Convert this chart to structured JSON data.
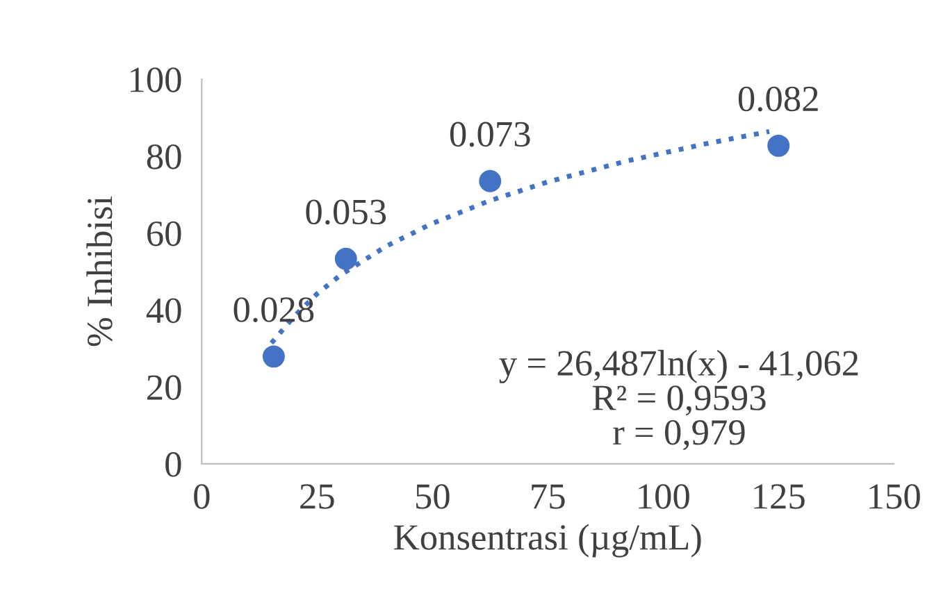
{
  "chart_data": {
    "type": "scatter",
    "xlabel": "Konsentrasi (µg/mL)",
    "ylabel": "% Inhibisi",
    "xlim": [
      0,
      150
    ],
    "xticks": [
      0,
      25,
      50,
      75,
      100,
      125,
      150
    ],
    "ylim": [
      0,
      100
    ],
    "yticks": [
      0,
      20,
      40,
      60,
      80,
      100
    ],
    "grid": false,
    "series": [
      {
        "color": "#4472c4",
        "marker": "circle",
        "x": [
          15.6,
          31.25,
          62.5,
          125
        ],
        "values": [
          27.9,
          53.3,
          73.5,
          82.7
        ]
      },
      {
        "type": "line",
        "color": "#4472c4",
        "line_style": "dotted",
        "x": [
          15.1,
          20,
          25,
          30,
          40,
          50,
          62.4,
          75,
          92,
          110,
          123
        ],
        "values": [
          31.4,
          38.3,
          44.2,
          49.0,
          56.6,
          62.5,
          68.4,
          73.3,
          78.7,
          83.4,
          86.4
        ]
      }
    ],
    "annotations": [
      {
        "text": "0.028",
        "x": 15.6,
        "y": 27.9
      },
      {
        "text": "0.053",
        "x": 31.25,
        "y": 53.3
      },
      {
        "text": "0.073",
        "x": 62.5,
        "y": 73.5
      },
      {
        "text": "0.082",
        "x": 125,
        "y": 82.7
      },
      "y = 26,487ln(x) - 41,062\nR² = 0,9593\nr = 0,979"
    ]
  }
}
